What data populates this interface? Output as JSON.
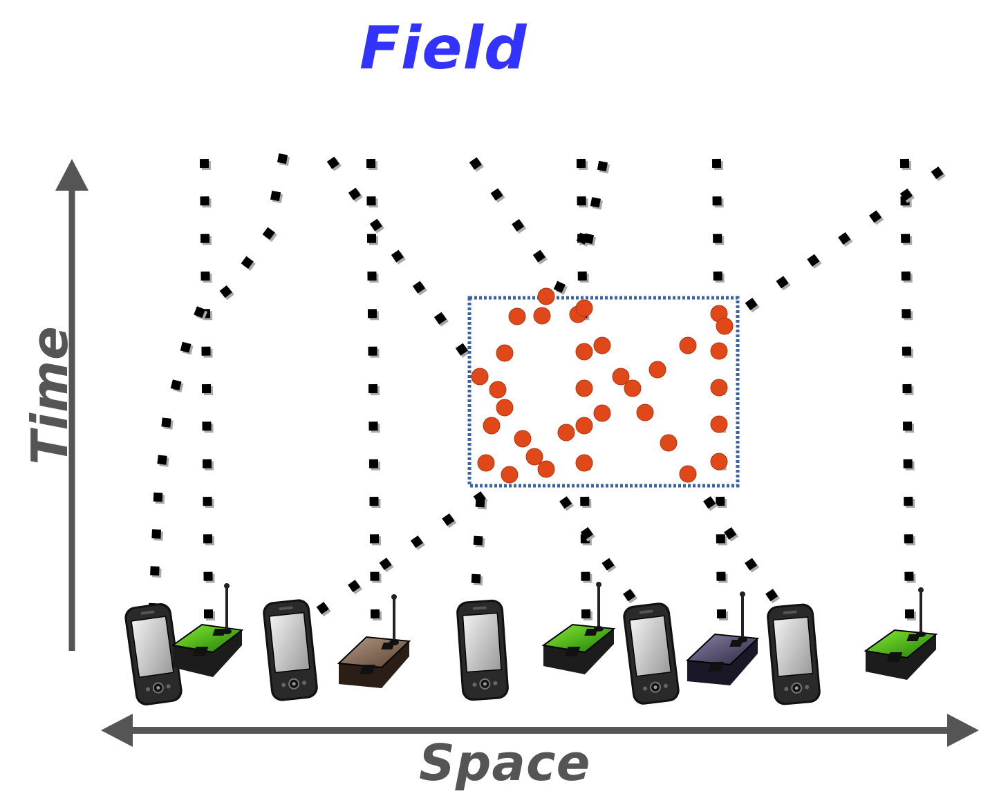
{
  "title": "Field",
  "axes": {
    "time_label": "Time",
    "space_label": "Space"
  },
  "colors": {
    "title": "#3333ff",
    "axis": "#555555",
    "track_dot": "#000000",
    "sample_point": "#e0481a",
    "field_box": "#3a62a8",
    "sensor_green": "#33aa11",
    "sensor_brown": "#6b4f3a",
    "sensor_purple": "#3d3550"
  },
  "devices": [
    {
      "type": "smartphone-icon"
    },
    {
      "type": "sensor-node-icon",
      "color": "green"
    },
    {
      "type": "smartphone-icon"
    },
    {
      "type": "sensor-node-icon",
      "color": "brown"
    },
    {
      "type": "smartphone-icon"
    },
    {
      "type": "sensor-node-icon",
      "color": "green"
    },
    {
      "type": "smartphone-icon"
    },
    {
      "type": "sensor-node-icon",
      "color": "purple"
    },
    {
      "type": "smartphone-icon"
    },
    {
      "type": "sensor-node-icon",
      "color": "green"
    }
  ]
}
